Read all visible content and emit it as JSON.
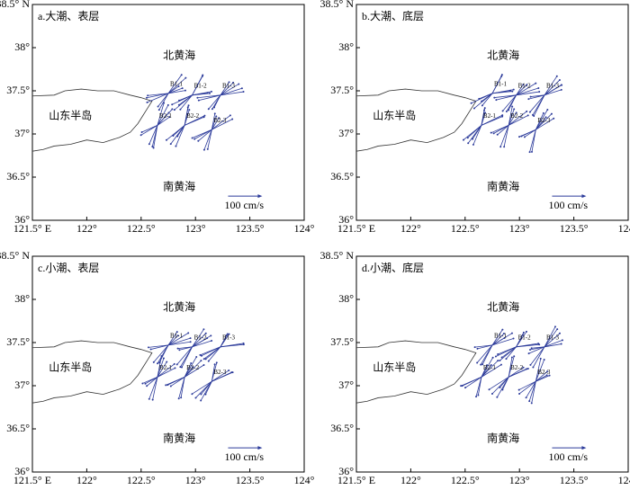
{
  "axes": {
    "xlim": [
      121.5,
      124
    ],
    "ylim": [
      36,
      38.5
    ],
    "xticks": [
      {
        "value": 121.5,
        "label": "121.5° E"
      },
      {
        "value": 122,
        "label": "122°"
      },
      {
        "value": 122.5,
        "label": "122.5°"
      },
      {
        "value": 123,
        "label": "123°"
      },
      {
        "value": 123.5,
        "label": "123.5°"
      },
      {
        "value": 124,
        "label": "124°"
      }
    ],
    "yticks": [
      {
        "value": 36,
        "label": "36°"
      },
      {
        "value": 36.5,
        "label": "36.5°"
      },
      {
        "value": 37,
        "label": "37°"
      },
      {
        "value": 37.5,
        "label": "37.5°"
      },
      {
        "value": 38,
        "label": "38°"
      },
      {
        "value": 38.5,
        "label": "38.5° N"
      }
    ]
  },
  "places": {
    "north": "北黄海",
    "peninsula": "山东半岛",
    "south": "南黄海"
  },
  "stations": [
    "B1-1",
    "B1-2",
    "B1-3",
    "B2-1",
    "B2-2",
    "B2-3"
  ],
  "scale_label": "100 cm/s",
  "panels": [
    {
      "title": "a.大潮、表层"
    },
    {
      "title": "b.大潮、底层"
    },
    {
      "title": "c.小潮、表层"
    },
    {
      "title": "d.小潮、底层"
    }
  ]
}
